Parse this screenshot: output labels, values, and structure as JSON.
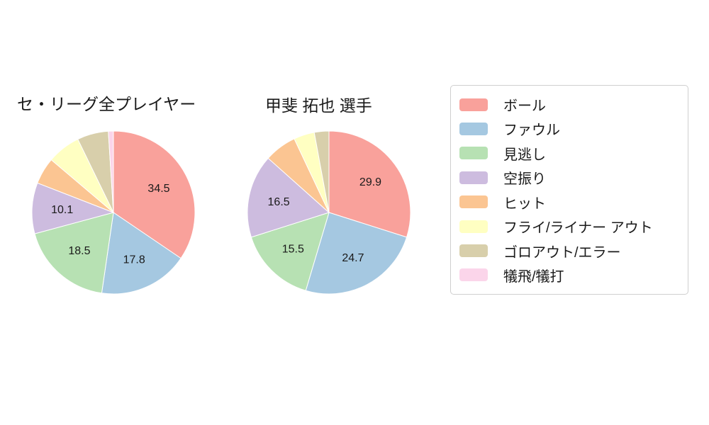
{
  "figure": {
    "background_color": "#ffffff",
    "text_color": "#1a1a1a",
    "legend_border_color": "#cfcfcf"
  },
  "palette": [
    "#f9a19b",
    "#a5c8e1",
    "#b7e1b3",
    "#cdbcdf",
    "#fbc592",
    "#ffffc2",
    "#d8cfab",
    "#fbd5ea"
  ],
  "legend": {
    "items": [
      {
        "label": "ボール"
      },
      {
        "label": "ファウル"
      },
      {
        "label": "見逃し"
      },
      {
        "label": "空振り"
      },
      {
        "label": "ヒット"
      },
      {
        "label": "フライ/ライナー アウト"
      },
      {
        "label": "ゴロアウト/エラー"
      },
      {
        "label": "犠飛/犠打"
      }
    ],
    "position": "right"
  },
  "chart_data": [
    {
      "type": "pie",
      "title": "セ・リーグ全プレイヤー",
      "labels": [
        "ボール",
        "ファウル",
        "見逃し",
        "空振り",
        "ヒット",
        "フライ/ライナー アウト",
        "ゴロアウト/エラー",
        "犠飛/犠打"
      ],
      "values": [
        34.5,
        17.8,
        18.5,
        10.1,
        5.3,
        6.6,
        6.2,
        1.0
      ],
      "shown_value_labels": [
        34.5,
        17.8,
        18.5,
        10.1
      ],
      "start_angle_deg": 90,
      "direction": "clockwise",
      "value_label_min": 10
    },
    {
      "type": "pie",
      "title": "甲斐 拓也 選手",
      "labels": [
        "ボール",
        "ファウル",
        "見逃し",
        "空振り",
        "ヒット",
        "フライ/ライナー アウト",
        "ゴロアウト/エラー",
        "犠飛/犠打"
      ],
      "values": [
        29.9,
        24.7,
        15.5,
        16.5,
        6.4,
        4.1,
        2.9,
        0.0
      ],
      "shown_value_labels": [
        29.9,
        24.7,
        15.5,
        16.5
      ],
      "start_angle_deg": 90,
      "direction": "clockwise",
      "value_label_min": 10
    }
  ]
}
